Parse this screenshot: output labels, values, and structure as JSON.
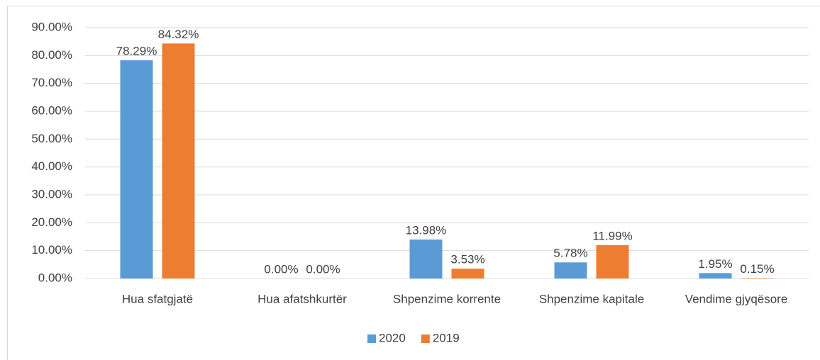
{
  "chart_data": {
    "type": "bar",
    "categories": [
      "Hua sfatgjatë",
      "Hua afatshkurtër",
      "Shpenzime korrente",
      "Shpenzime kapitale",
      "Vendime gjyqësore"
    ],
    "series": [
      {
        "name": "2020",
        "color": "#5b9bd5",
        "values": [
          78.29,
          0,
          13.98,
          5.78,
          1.95
        ],
        "value_labels": [
          "78.29%",
          "0.00%",
          "13.98%",
          "5.78%",
          "1.95%"
        ]
      },
      {
        "name": "2019",
        "color": "#ed7d31",
        "values": [
          84.32,
          0,
          3.53,
          11.99,
          0.15
        ],
        "value_labels": [
          "84.32%",
          "0.00%",
          "3.53%",
          "11.99%",
          "0.15%"
        ]
      }
    ],
    "ylim": [
      0,
      90
    ],
    "yticks": [
      {
        "value": 0,
        "label": "0.00%"
      },
      {
        "value": 10,
        "label": "10.00%"
      },
      {
        "value": 20,
        "label": "20.00%"
      },
      {
        "value": 30,
        "label": "30.00%"
      },
      {
        "value": 40,
        "label": "40.00%"
      },
      {
        "value": 50,
        "label": "50.00%"
      },
      {
        "value": 60,
        "label": "60.00%"
      },
      {
        "value": 70,
        "label": "70.00%"
      },
      {
        "value": 80,
        "label": "80.00%"
      },
      {
        "value": 90,
        "label": "90.00%"
      }
    ],
    "grid": true,
    "legend": "bottom"
  }
}
